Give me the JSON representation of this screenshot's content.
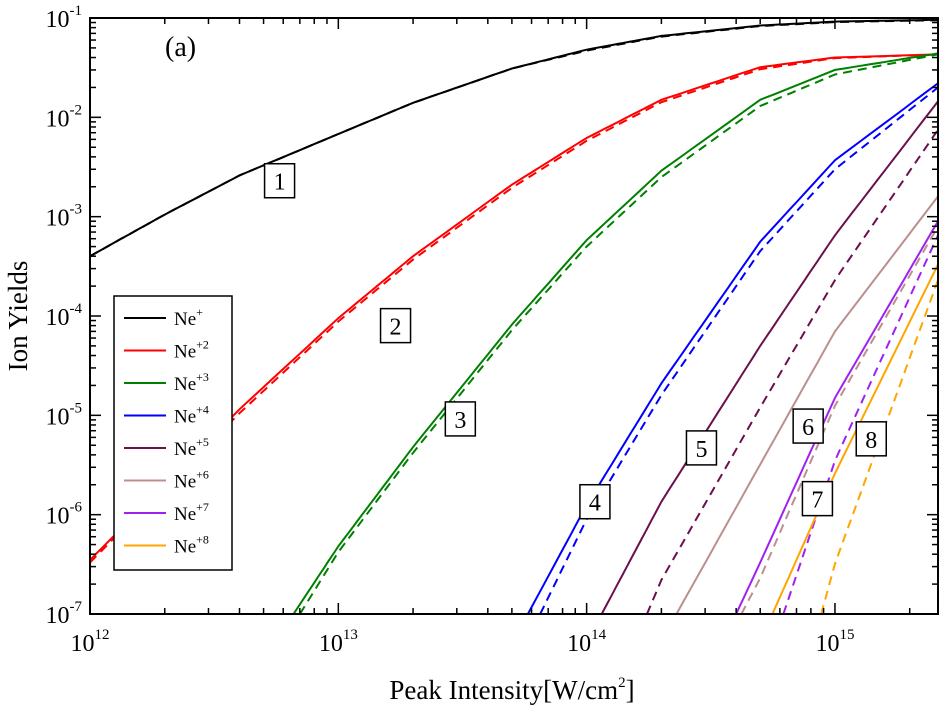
{
  "chart_data": {
    "type": "line",
    "panel_label": "(a)",
    "xlabel": {
      "text": "Peak Intensity[W/cm",
      "sup": "2",
      "close": "]"
    },
    "ylabel": "Ion Yields",
    "x_scale": "log",
    "y_scale": "log",
    "xlim": [
      1000000000000.0,
      2600000000000000.0
    ],
    "ylim": [
      1e-07,
      0.1
    ],
    "x_ticks": [
      {
        "value": 1000000000000.0,
        "base": "10",
        "exp": "12"
      },
      {
        "value": 10000000000000.0,
        "base": "10",
        "exp": "13"
      },
      {
        "value": 100000000000000.0,
        "base": "10",
        "exp": "14"
      },
      {
        "value": 1000000000000000.0,
        "base": "10",
        "exp": "15"
      }
    ],
    "y_ticks": [
      {
        "value": 1e-07,
        "base": "10",
        "exp": "-7"
      },
      {
        "value": 1e-06,
        "base": "10",
        "exp": "-6"
      },
      {
        "value": 1e-05,
        "base": "10",
        "exp": "-5"
      },
      {
        "value": 0.0001,
        "base": "10",
        "exp": "-4"
      },
      {
        "value": 0.001,
        "base": "10",
        "exp": "-3"
      },
      {
        "value": 0.01,
        "base": "10",
        "exp": "-2"
      },
      {
        "value": 0.1,
        "base": "10",
        "exp": "-1"
      }
    ],
    "legend_position": "left-bottom",
    "line_styles": [
      "solid",
      "dashed"
    ],
    "series": [
      {
        "name": "Ne",
        "charge": "+",
        "label": "1",
        "color": "#000000",
        "label_at": [
          5800000000000.0,
          0.0023
        ],
        "solid": [
          [
            1000000000000.0,
            0.0004
          ],
          [
            2000000000000.0,
            0.00105
          ],
          [
            4000000000000.0,
            0.0026
          ],
          [
            10000000000000.0,
            0.0068
          ],
          [
            20000000000000.0,
            0.014
          ],
          [
            50000000000000.0,
            0.031
          ],
          [
            100000000000000.0,
            0.048
          ],
          [
            200000000000000.0,
            0.066
          ],
          [
            500000000000000.0,
            0.084
          ],
          [
            1000000000000000.0,
            0.092
          ],
          [
            2600000000000000.0,
            0.096
          ]
        ],
        "dashed": [
          [
            1000000000000.0,
            0.0004
          ],
          [
            2000000000000.0,
            0.00105
          ],
          [
            4000000000000.0,
            0.0026
          ],
          [
            10000000000000.0,
            0.0068
          ],
          [
            20000000000000.0,
            0.014
          ],
          [
            50000000000000.0,
            0.031
          ],
          [
            100000000000000.0,
            0.047
          ],
          [
            200000000000000.0,
            0.065
          ],
          [
            500000000000000.0,
            0.083
          ],
          [
            1000000000000000.0,
            0.091
          ],
          [
            2600000000000000.0,
            0.095
          ]
        ]
      },
      {
        "name": "Ne",
        "charge": "+2",
        "label": "2",
        "color": "#ff0000",
        "label_at": [
          17000000000000.0,
          8e-05
        ],
        "solid": [
          [
            1000000000000.0,
            3.5e-07
          ],
          [
            2000000000000.0,
            2e-06
          ],
          [
            4000000000000.0,
            1.15e-05
          ],
          [
            10000000000000.0,
            9.5e-05
          ],
          [
            20000000000000.0,
            0.0004
          ],
          [
            50000000000000.0,
            0.0021
          ],
          [
            100000000000000.0,
            0.0062
          ],
          [
            200000000000000.0,
            0.015
          ],
          [
            500000000000000.0,
            0.032
          ],
          [
            1000000000000000.0,
            0.04
          ],
          [
            2600000000000000.0,
            0.043
          ]
        ],
        "dashed": [
          [
            1000000000000.0,
            3.3e-07
          ],
          [
            2000000000000.0,
            1.9e-06
          ],
          [
            4000000000000.0,
            1.05e-05
          ],
          [
            10000000000000.0,
            8.8e-05
          ],
          [
            20000000000000.0,
            0.00037
          ],
          [
            50000000000000.0,
            0.00195
          ],
          [
            100000000000000.0,
            0.0058
          ],
          [
            200000000000000.0,
            0.0142
          ],
          [
            500000000000000.0,
            0.0305
          ],
          [
            1000000000000000.0,
            0.0395
          ],
          [
            2600000000000000.0,
            0.043
          ]
        ]
      },
      {
        "name": "Ne",
        "charge": "+3",
        "label": "3",
        "color": "#008000",
        "label_at": [
          31000000000000.0,
          9.2e-06
        ],
        "solid": [
          [
            6600000000000.0,
            1e-07
          ],
          [
            10000000000000.0,
            4.8e-07
          ],
          [
            20000000000000.0,
            4.8e-06
          ],
          [
            50000000000000.0,
            8.2e-05
          ],
          [
            100000000000000.0,
            0.00058
          ],
          [
            200000000000000.0,
            0.0029
          ],
          [
            500000000000000.0,
            0.015
          ],
          [
            1000000000000000.0,
            0.03
          ],
          [
            2600000000000000.0,
            0.044
          ]
        ],
        "dashed": [
          [
            7000000000000.0,
            1e-07
          ],
          [
            10000000000000.0,
            4.2e-07
          ],
          [
            20000000000000.0,
            4.2e-06
          ],
          [
            50000000000000.0,
            7.2e-05
          ],
          [
            100000000000000.0,
            0.0005
          ],
          [
            200000000000000.0,
            0.0025
          ],
          [
            500000000000000.0,
            0.013
          ],
          [
            1000000000000000.0,
            0.027
          ],
          [
            2600000000000000.0,
            0.043
          ]
        ]
      },
      {
        "name": "Ne",
        "charge": "+4",
        "label": "4",
        "color": "#0000ff",
        "label_at": [
          108000000000000.0,
          1.35e-06
        ],
        "solid": [
          [
            58000000000000.0,
            1e-07
          ],
          [
            100000000000000.0,
            1.25e-06
          ],
          [
            200000000000000.0,
            2.1e-05
          ],
          [
            500000000000000.0,
            0.00056
          ],
          [
            1000000000000000.0,
            0.0037
          ],
          [
            2600000000000000.0,
            0.022
          ]
        ],
        "dashed": [
          [
            65000000000000.0,
            1e-07
          ],
          [
            100000000000000.0,
            9e-07
          ],
          [
            200000000000000.0,
            1.6e-05
          ],
          [
            500000000000000.0,
            0.00045
          ],
          [
            1000000000000000.0,
            0.003
          ],
          [
            2600000000000000.0,
            0.02
          ]
        ]
      },
      {
        "name": "Ne",
        "charge": "+5",
        "label": "5",
        "color": "#6b0f4f",
        "label_at": [
          290000000000000.0,
          4.7e-06
        ],
        "solid": [
          [
            115000000000000.0,
            1e-07
          ],
          [
            200000000000000.0,
            1.35e-06
          ],
          [
            500000000000000.0,
            5e-05
          ],
          [
            1000000000000000.0,
            0.00065
          ],
          [
            2600000000000000.0,
            0.0145
          ]
        ],
        "dashed": [
          [
            175000000000000.0,
            1e-07
          ],
          [
            200000000000000.0,
            2.2e-07
          ],
          [
            500000000000000.0,
            1.2e-05
          ],
          [
            1000000000000000.0,
            0.00023
          ],
          [
            2600000000000000.0,
            0.0075
          ]
        ]
      },
      {
        "name": "Ne",
        "charge": "+6",
        "label": "6",
        "color": "#bc8f8f",
        "label_at": [
          780000000000000.0,
          7.8e-06
        ],
        "solid": [
          [
            230000000000000.0,
            1e-07
          ],
          [
            500000000000000.0,
            3.2e-06
          ],
          [
            1000000000000000.0,
            7e-05
          ],
          [
            2600000000000000.0,
            0.0016
          ]
        ],
        "dashed": [
          [
            420000000000000.0,
            1e-07
          ],
          [
            500000000000000.0,
            2.3e-07
          ],
          [
            1000000000000000.0,
            1.25e-05
          ],
          [
            2600000000000000.0,
            0.0008
          ]
        ]
      },
      {
        "name": "Ne",
        "charge": "+7",
        "label": "7",
        "color": "#a020f0",
        "label_at": [
          850000000000000.0,
          1.45e-06
        ],
        "solid": [
          [
            400000000000000.0,
            1e-07
          ],
          [
            500000000000000.0,
            3.3e-07
          ],
          [
            1000000000000000.0,
            1.5e-05
          ],
          [
            2600000000000000.0,
            0.0009
          ]
        ],
        "dashed": [
          [
            620000000000000.0,
            1e-07
          ],
          [
            1000000000000000.0,
            3.5e-06
          ],
          [
            2600000000000000.0,
            0.00065
          ]
        ]
      },
      {
        "name": "Ne",
        "charge": "+8",
        "label": "8",
        "color": "#ffa500",
        "label_at": [
          1400000000000000.0,
          5.8e-06
        ],
        "solid": [
          [
            560000000000000.0,
            1e-07
          ],
          [
            1000000000000000.0,
            2.6e-06
          ],
          [
            2600000000000000.0,
            0.00033
          ]
        ],
        "dashed": [
          [
            880000000000000.0,
            1e-07
          ],
          [
            1000000000000000.0,
            3.2e-07
          ],
          [
            2600000000000000.0,
            0.00023
          ]
        ]
      }
    ]
  }
}
